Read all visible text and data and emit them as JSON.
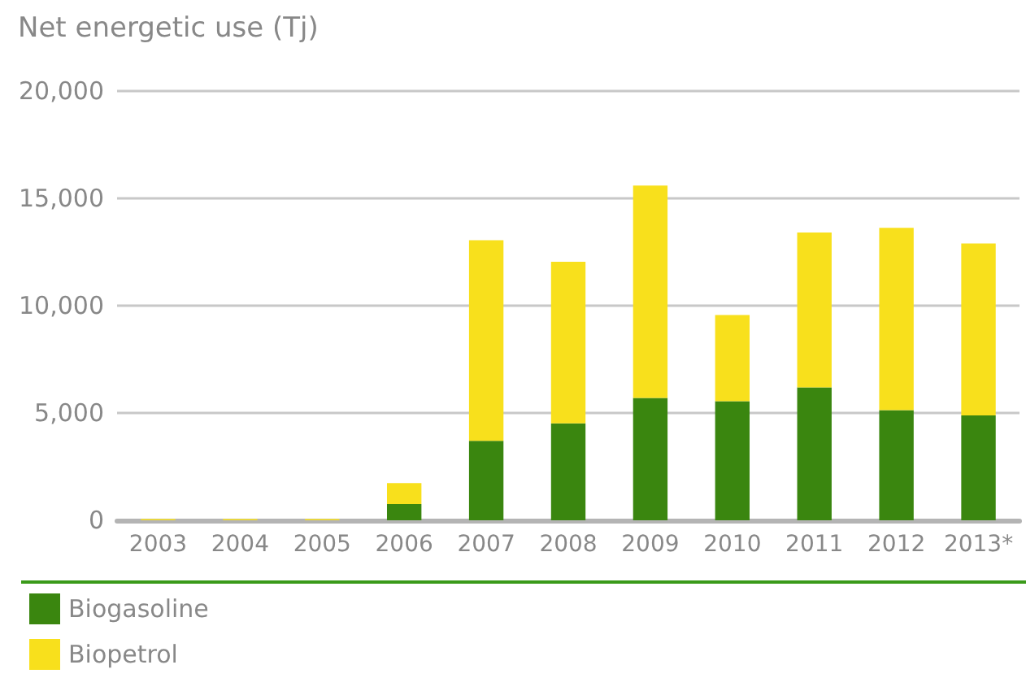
{
  "chart_data": {
    "type": "bar",
    "title": "Net energetic use (Tj)",
    "stacked": true,
    "categories": [
      "2003",
      "2004",
      "2005",
      "2006",
      "2007",
      "2008",
      "2009",
      "2010",
      "2011",
      "2012",
      "2013*"
    ],
    "series": [
      {
        "name": "Biogasoline",
        "color": "#3a860f",
        "values": [
          0,
          0,
          0,
          760,
          3700,
          4520,
          5700,
          5550,
          6190,
          5130,
          4890
        ]
      },
      {
        "name": "Biopetrol",
        "color": "#f8e01c",
        "values": [
          60,
          60,
          60,
          970,
          9350,
          7530,
          9900,
          4010,
          7220,
          8500,
          8010
        ]
      }
    ],
    "ylim": [
      0,
      20000
    ],
    "yticks": [
      {
        "value": 0,
        "label": "0"
      },
      {
        "value": 5000,
        "label": "5,000"
      },
      {
        "value": 10000,
        "label": "10,000"
      },
      {
        "value": 15000,
        "label": "15,000"
      },
      {
        "value": 20000,
        "label": "20,000"
      }
    ],
    "grid": "y",
    "legend": "bottom left"
  }
}
